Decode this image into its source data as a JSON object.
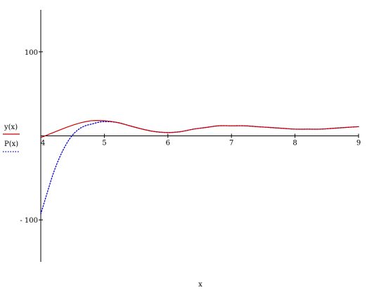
{
  "chart_data": {
    "type": "line",
    "xlabel": "x",
    "ylabel": "",
    "xlim": [
      4,
      9
    ],
    "ylim": [
      -150,
      150
    ],
    "x_ticks": [
      {
        "value": 4,
        "label": "4"
      },
      {
        "value": 5,
        "label": "5"
      },
      {
        "value": 6,
        "label": "6"
      },
      {
        "value": 7,
        "label": "7"
      },
      {
        "value": 8,
        "label": "8"
      },
      {
        "value": 9,
        "label": "9"
      }
    ],
    "y_ticks": [
      {
        "value": 100,
        "label": "100"
      },
      {
        "value": -100,
        "label": "- 100"
      }
    ],
    "grid": false,
    "legend": "left",
    "series": [
      {
        "name": "y(x)",
        "color": "#cc0000",
        "style": "solid",
        "x": [
          4.0,
          4.2,
          4.4,
          4.6,
          4.8,
          5.0,
          5.2,
          5.4,
          5.6,
          5.8,
          6.0,
          6.2,
          6.4,
          6.6,
          6.8,
          7.0,
          7.2,
          7.4,
          7.6,
          7.8,
          8.0,
          8.2,
          8.4,
          8.6,
          8.8,
          9.0
        ],
        "y": [
          -2,
          4,
          10,
          15,
          18,
          18,
          16,
          12,
          8,
          5,
          4,
          5,
          8,
          10,
          12,
          12,
          12,
          11,
          10,
          9,
          8,
          8,
          8,
          9,
          10,
          11
        ]
      },
      {
        "name": "P(x)",
        "color": "#0000cc",
        "style": "dotted",
        "x": [
          4.0,
          4.1,
          4.2,
          4.3,
          4.4,
          4.5,
          4.6,
          4.7,
          4.8,
          4.9,
          5.0,
          5.2,
          5.4,
          5.6,
          5.8,
          6.0,
          6.2,
          6.4,
          6.6,
          6.8,
          7.0,
          7.2,
          7.4,
          7.6,
          7.8,
          8.0,
          8.2,
          8.4,
          8.6,
          8.8,
          9.0
        ],
        "y": [
          -93,
          -68,
          -44,
          -25,
          -10,
          1,
          8,
          12,
          14,
          16,
          17,
          16,
          12,
          8,
          5,
          4,
          5,
          8,
          10,
          12,
          12,
          12,
          11,
          10,
          9,
          8,
          8,
          8,
          9,
          10,
          11
        ]
      }
    ]
  }
}
